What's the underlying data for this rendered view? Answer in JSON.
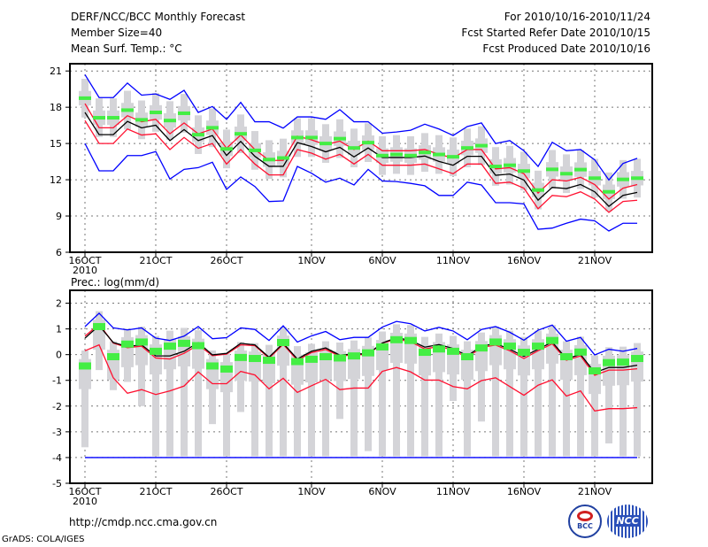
{
  "header": {
    "title": "DERF/NCC/BCC Monthly Forecast",
    "member_size": "Member Size=40",
    "variable": "Mean Surf. Temp.: °C",
    "period": "For 2010/10/16-2010/11/24",
    "start_date": "Fcst Started Refer Date 2010/10/15",
    "produced_date": "Fcst Produced Date 2010/10/16"
  },
  "footer": {
    "url": "http://cmdp.ncc.cma.gov.cn",
    "grads": "GrADS: COLA/IGES",
    "logo_bcc": "BCC",
    "logo_ncc": "NCC"
  },
  "colors": {
    "max_min": "#0000ff",
    "spread": "#ff1030",
    "mean": "#000000",
    "obs": "#44ee44",
    "box": "#d4d4d8"
  },
  "chart_data": [
    {
      "type": "line",
      "title": "Mean Surf. Temp.: °C",
      "ylim": [
        6,
        21.6
      ],
      "yticks": [
        "6",
        "9",
        "12",
        "15",
        "18",
        "21"
      ],
      "ytick_values": [
        6,
        9,
        12,
        15,
        18,
        21
      ],
      "xticks": [
        "16OCT",
        "21OCT",
        "26OCT",
        "1NOV",
        "6NOV",
        "11NOV",
        "16NOV",
        "21NOV"
      ],
      "xtick_days": [
        0,
        5,
        10,
        16,
        21,
        26,
        31,
        36
      ],
      "year_label": "2010",
      "grid": true,
      "box_half": 0.6,
      "whisker_half": 1.6,
      "max": [
        20.7,
        18.8,
        18.8,
        20.0,
        19.0,
        19.1,
        18.65,
        19.4,
        17.57,
        18.06,
        17.0,
        18.4,
        16.8,
        16.8,
        16.27,
        17.2,
        17.2,
        17.0,
        17.8,
        16.8,
        16.8,
        15.85,
        15.95,
        16.1,
        16.6,
        16.2,
        15.66,
        16.4,
        16.7,
        15.0,
        15.24,
        14.4,
        13.1,
        15.1,
        14.4,
        14.5,
        13.65,
        11.98,
        13.35,
        13.77
      ],
      "upper": [
        18.3,
        16.3,
        16.3,
        17.3,
        16.8,
        17.0,
        15.8,
        16.7,
        15.8,
        16.2,
        14.6,
        15.7,
        14.5,
        13.6,
        13.6,
        15.6,
        15.3,
        14.9,
        15.2,
        14.5,
        15.2,
        14.4,
        14.4,
        14.4,
        14.5,
        14.1,
        13.8,
        14.5,
        14.5,
        12.9,
        13.0,
        12.5,
        10.9,
        12.0,
        11.9,
        12.2,
        11.6,
        10.4,
        11.3,
        11.6
      ],
      "mean": [
        17.57,
        15.73,
        15.73,
        16.83,
        16.29,
        16.51,
        15.24,
        16.15,
        15.24,
        15.66,
        14.01,
        15.17,
        13.94,
        13.11,
        13.11,
        15.07,
        14.75,
        14.31,
        14.68,
        13.89,
        14.63,
        13.84,
        13.84,
        13.84,
        13.96,
        13.52,
        13.2,
        13.94,
        13.94,
        12.37,
        12.47,
        11.98,
        10.31,
        11.37,
        11.27,
        11.61,
        11.0,
        9.8,
        10.71,
        10.95
      ],
      "lower": [
        16.9,
        15.0,
        15.0,
        16.2,
        15.7,
        15.8,
        14.5,
        15.5,
        14.6,
        15.0,
        13.3,
        14.5,
        13.3,
        12.4,
        12.4,
        14.5,
        14.2,
        13.7,
        14.1,
        13.3,
        14.1,
        13.2,
        13.2,
        13.2,
        13.3,
        12.9,
        12.5,
        13.3,
        13.3,
        11.7,
        11.8,
        11.3,
        9.6,
        10.7,
        10.6,
        11.0,
        10.4,
        9.3,
        10.2,
        10.3
      ],
      "min": [
        15.0,
        12.74,
        12.74,
        14.0,
        14.0,
        14.33,
        12.06,
        12.86,
        13.0,
        13.45,
        11.2,
        12.23,
        11.44,
        10.2,
        10.25,
        13.1,
        12.54,
        11.8,
        12.13,
        11.57,
        12.86,
        11.9,
        11.85,
        11.7,
        11.5,
        10.7,
        10.7,
        11.8,
        11.57,
        10.1,
        10.1,
        10.0,
        7.9,
        8.0,
        8.4,
        8.74,
        8.6,
        7.76,
        8.4,
        8.4
      ],
      "obs": [
        18.75,
        17.13,
        17.13,
        17.76,
        16.96,
        17.57,
        16.9,
        17.5,
        15.73,
        16.3,
        14.55,
        15.8,
        14.43,
        13.67,
        13.8,
        15.49,
        15.49,
        15.0,
        15.4,
        14.63,
        15.07,
        14.0,
        14.09,
        14.0,
        14.26,
        14.09,
        13.9,
        14.63,
        14.82,
        13.1,
        13.2,
        12.72,
        11.15,
        12.86,
        12.5,
        12.84,
        12.13,
        11.0,
        12.03,
        12.13
      ]
    },
    {
      "type": "line",
      "title": "Prec.: log(mm/d)",
      "ylim": [
        -5,
        2.5
      ],
      "yticks": [
        "-5",
        "-4",
        "-3",
        "-2",
        "-1",
        "0",
        "1",
        "2"
      ],
      "ytick_values": [
        -5,
        -4,
        -3,
        -2,
        -1,
        0,
        1,
        2
      ],
      "xticks": [
        "16OCT",
        "21OCT",
        "26OCT",
        "1NOV",
        "6NOV",
        "11NOV",
        "16NOV",
        "21NOV"
      ],
      "xtick_days": [
        0,
        5,
        10,
        16,
        21,
        26,
        31,
        36
      ],
      "year_label": "2010",
      "grid": true,
      "box_half": 0.45,
      "whisker_top": 0.6,
      "whisker_low": [
        -3.6,
        -0.6,
        -1.38,
        -1.06,
        -2.0,
        -3.95,
        -3.95,
        -3.95,
        -3.95,
        -2.7,
        -3.95,
        -2.23,
        -3.95,
        -3.95,
        -3.95,
        -3.95,
        -3.95,
        -3.95,
        -2.5,
        -3.95,
        -3.75,
        -3.95,
        -3.95,
        -3.95,
        -3.95,
        -3.95,
        -1.8,
        -3.95,
        -2.6,
        -3.95,
        -3.95,
        -3.95,
        -3.95,
        -3.95,
        -3.95,
        -3.95,
        -3.95,
        -3.45,
        -3.95,
        -3.95
      ],
      "max": [
        1.09,
        1.61,
        1.04,
        0.96,
        1.04,
        0.64,
        0.55,
        0.72,
        1.09,
        0.62,
        0.66,
        1.04,
        0.98,
        0.55,
        1.12,
        0.49,
        0.73,
        0.9,
        0.58,
        0.67,
        0.67,
        1.07,
        1.29,
        1.2,
        0.92,
        1.06,
        0.92,
        0.58,
        0.98,
        1.09,
        0.87,
        0.56,
        0.95,
        1.15,
        0.52,
        0.67,
        -0.01,
        0.21,
        0.13,
        0.24
      ],
      "upper": [
        0.72,
        1.18,
        0.45,
        0.27,
        0.33,
        -0.13,
        -0.17,
        0.05,
        0.38,
        -0.04,
        0.02,
        0.38,
        0.35,
        -0.14,
        0.4,
        -0.22,
        0.08,
        0.2,
        -0.06,
        0.0,
        0.0,
        0.45,
        0.6,
        0.5,
        0.22,
        0.32,
        0.18,
        -0.12,
        0.28,
        0.37,
        0.15,
        -0.15,
        0.15,
        0.42,
        -0.22,
        -0.05,
        -0.8,
        -0.6,
        -0.6,
        -0.55
      ],
      "mean": [
        0.64,
        1.13,
        0.47,
        0.32,
        0.38,
        -0.05,
        -0.05,
        0.13,
        0.47,
        -0.01,
        0.05,
        0.44,
        0.38,
        -0.1,
        0.44,
        -0.17,
        0.13,
        0.26,
        -0.02,
        0.03,
        0.03,
        0.45,
        0.66,
        0.55,
        0.29,
        0.39,
        0.24,
        -0.05,
        0.33,
        0.43,
        0.21,
        -0.07,
        0.21,
        0.49,
        -0.16,
        0.01,
        -0.7,
        -0.5,
        -0.5,
        -0.41
      ],
      "lower": [
        0.15,
        0.38,
        -0.9,
        -1.5,
        -1.36,
        -1.55,
        -1.41,
        -1.22,
        -0.67,
        -1.13,
        -1.13,
        -0.65,
        -0.79,
        -1.33,
        -0.92,
        -1.47,
        -1.21,
        -0.96,
        -1.36,
        -1.3,
        -1.3,
        -0.65,
        -0.5,
        -0.67,
        -0.99,
        -0.99,
        -1.24,
        -1.33,
        -1.01,
        -0.9,
        -1.24,
        -1.58,
        -1.19,
        -0.98,
        -1.61,
        -1.41,
        -2.19,
        -2.1,
        -2.1,
        -2.06
      ],
      "min": [
        -4,
        -4,
        -4,
        -4,
        -4,
        -4,
        -4,
        -4,
        -4,
        -4,
        -4,
        -4,
        -4,
        -4,
        -4,
        -4,
        -4,
        -4,
        -4,
        -4,
        -4,
        -4,
        -4,
        -4,
        -4,
        -4,
        -4,
        -4,
        -4,
        -4,
        -4,
        -4,
        -4,
        -4,
        -4,
        -4,
        -4,
        -4,
        -4,
        -4
      ],
      "obs": [
        -0.44,
        1.09,
        -0.08,
        0.41,
        0.49,
        0.13,
        0.33,
        0.44,
        0.35,
        -0.44,
        -0.56,
        -0.11,
        -0.15,
        -0.22,
        0.47,
        -0.27,
        -0.18,
        -0.08,
        -0.13,
        -0.05,
        0.07,
        0.3,
        0.58,
        0.55,
        0.09,
        0.22,
        0.13,
        -0.08,
        0.26,
        0.49,
        0.33,
        0.09,
        0.33,
        0.55,
        -0.08,
        0.1,
        -0.63,
        -0.31,
        -0.29,
        -0.15
      ]
    }
  ]
}
